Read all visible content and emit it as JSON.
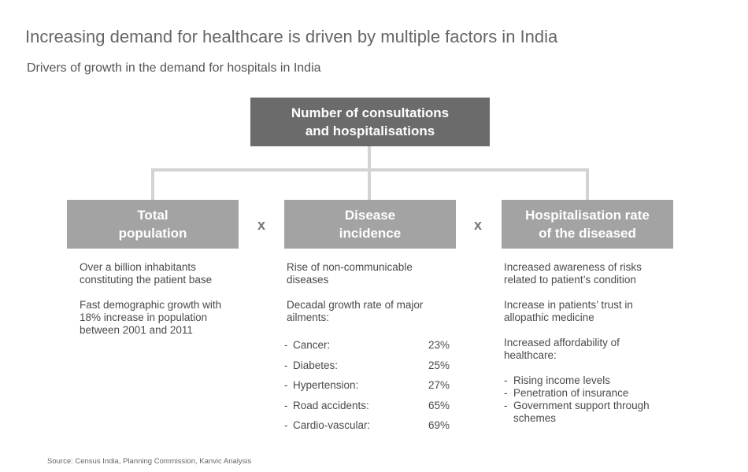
{
  "title": "Increasing demand for healthcare is driven by multiple factors in India",
  "subtitle": "Drivers of growth in the demand for hospitals in India",
  "top_box": {
    "line1": "Number of consultations",
    "line2": "and hospitalisations"
  },
  "operator": "x",
  "factors": [
    {
      "line1": "Total",
      "line2": "population",
      "paragraphs": [
        "Over a billion inhabitants constituting the patient base",
        "Fast demographic growth with 18% increase in population between 2001 and 2011"
      ]
    },
    {
      "line1": "Disease",
      "line2": "incidence",
      "paragraphs": [
        "Rise of non-communicable diseases",
        "Decadal growth rate of major ailments:"
      ],
      "ailments": [
        {
          "name": "Cancer:",
          "value": "23%"
        },
        {
          "name": "Diabetes:",
          "value": "25%"
        },
        {
          "name": "Hypertension:",
          "value": "27%"
        },
        {
          "name": "Road accidents:",
          "value": "65%"
        },
        {
          "name": "Cardio-vascular:",
          "value": "69%"
        }
      ]
    },
    {
      "line1": "Hospitalisation rate",
      "line2": "of the diseased",
      "paragraphs": [
        "Increased awareness of risks related to patient’s condition",
        "Increase in patients’ trust in allopathic medicine",
        "Increased affordability of healthcare:"
      ],
      "bullets": [
        "Rising income levels",
        "Penetration of insurance",
        "Government support through schemes"
      ]
    }
  ],
  "dash": "-",
  "source": "Source: Census India, Planning Commission, Kanvic Analysis"
}
